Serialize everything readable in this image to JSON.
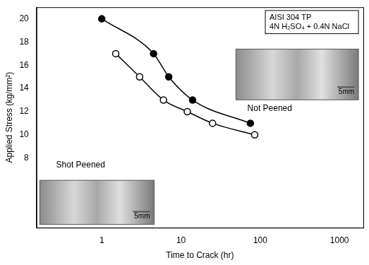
{
  "chart_data": {
    "type": "line",
    "x_label": "Time to Crack (hr)",
    "y_label": "Applied Stress (kg/mm²)",
    "log": "x",
    "grid": false,
    "xlim": [
      0.15,
      2000
    ],
    "xticks": [
      1,
      10,
      100,
      1000
    ],
    "ylim": [
      2,
      21
    ],
    "yticks": [
      8,
      10,
      12,
      14,
      16,
      18,
      20
    ],
    "annotations": [
      "AISI 304 TP",
      "4N H₂SO₄ + 0.4N NaCl",
      "5mm",
      "5mm"
    ],
    "series": [
      {
        "name": "Not Peened",
        "color": "#000000",
        "marker": "filled_circle",
        "line_style": "solid",
        "x": [
          1,
          4.5,
          7,
          14,
          75
        ],
        "values": [
          20,
          17,
          15,
          13,
          11
        ]
      },
      {
        "name": "Shot Peened",
        "color": "#000000",
        "marker": "open_circle",
        "line_style": "solid",
        "x": [
          1.5,
          3,
          6,
          12,
          25,
          85
        ],
        "values": [
          17,
          15,
          13,
          12,
          11,
          10
        ]
      }
    ]
  }
}
